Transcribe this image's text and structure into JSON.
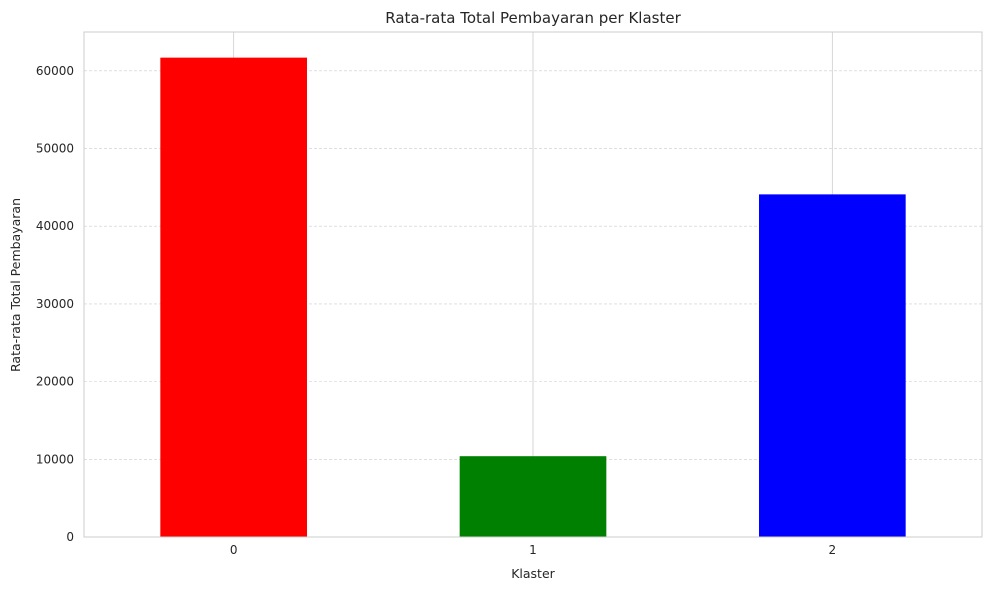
{
  "chart_data": {
    "type": "bar",
    "title": "Rata-rata Total Pembayaran per Klaster",
    "xlabel": "Klaster",
    "ylabel": "Rata-rata Total Pembayaran",
    "categories": [
      "0",
      "1",
      "2"
    ],
    "values": [
      61700,
      10400,
      44100
    ],
    "colors": [
      "#ff0000",
      "#008000",
      "#0000ff"
    ],
    "ylim": [
      0,
      65000
    ],
    "yticks": [
      0,
      10000,
      20000,
      30000,
      40000,
      50000,
      60000
    ],
    "ytick_labels": [
      "0",
      "10000",
      "20000",
      "30000",
      "40000",
      "50000",
      "60000"
    ],
    "grid": true,
    "legend": "none"
  }
}
